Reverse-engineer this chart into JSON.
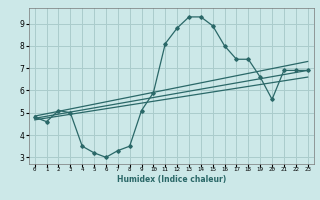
{
  "bg_color": "#cce8e8",
  "grid_color": "#aacccc",
  "line_color": "#2a6868",
  "xlabel": "Humidex (Indice chaleur)",
  "xlim": [
    -0.5,
    23.5
  ],
  "ylim": [
    2.7,
    9.7
  ],
  "xticks": [
    0,
    1,
    2,
    3,
    4,
    5,
    6,
    7,
    8,
    9,
    10,
    11,
    12,
    13,
    14,
    15,
    16,
    17,
    18,
    19,
    20,
    21,
    22,
    23
  ],
  "yticks": [
    3,
    4,
    5,
    6,
    7,
    8,
    9
  ],
  "main_x": [
    0,
    1,
    2,
    3,
    4,
    5,
    6,
    7,
    8,
    9,
    10,
    11,
    12,
    13,
    14,
    15,
    16,
    17,
    18,
    19,
    20,
    21,
    22,
    23
  ],
  "main_y": [
    4.8,
    4.6,
    5.1,
    5.0,
    3.5,
    3.2,
    3.0,
    3.3,
    3.5,
    5.1,
    5.9,
    8.1,
    8.8,
    9.3,
    9.3,
    8.9,
    8.0,
    7.4,
    7.4,
    6.6,
    5.6,
    6.9,
    6.9,
    6.9
  ],
  "line1_x": [
    0,
    23
  ],
  "line1_y": [
    4.85,
    7.3
  ],
  "line2_x": [
    0,
    23
  ],
  "line2_y": [
    4.75,
    6.9
  ],
  "line3_x": [
    0,
    23
  ],
  "line3_y": [
    4.68,
    6.6
  ]
}
